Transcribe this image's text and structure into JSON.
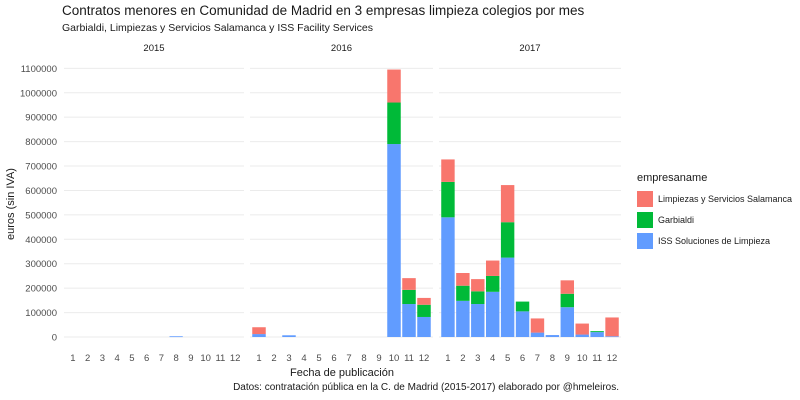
{
  "title": "Contratos menores en Comunidad de Madrid en 3 empresas limpieza colegios por mes",
  "subtitle": "Garbialdi, Limpiezas y Servicios Salamanca y ISS Facility Services",
  "caption": "Datos: contratación pública en la C. de Madrid (2015-2017) elaborado por @hmeleiros.",
  "legend": {
    "title": "empresaname",
    "items": [
      {
        "label": "Limpiezas y Servicios Salamanca",
        "color": "#F8766D"
      },
      {
        "label": "Garbialdi",
        "color": "#00BA38"
      },
      {
        "label": "ISS Soluciones de Limpieza",
        "color": "#619CFF"
      }
    ]
  },
  "chart_data": {
    "type": "bar",
    "stacked": true,
    "facets": [
      "2015",
      "2016",
      "2017"
    ],
    "categories": [
      "1",
      "2",
      "3",
      "4",
      "5",
      "6",
      "7",
      "8",
      "9",
      "10",
      "11",
      "12"
    ],
    "xlabel": "Fecha de publicación",
    "ylabel": "euros (sin IVA)",
    "ylim": [
      0,
      1130000
    ],
    "yticks": [
      0,
      100000,
      200000,
      300000,
      400000,
      500000,
      600000,
      700000,
      800000,
      900000,
      1000000,
      1100000
    ],
    "ytick_labels": [
      "0",
      "100000",
      "200000",
      "300000",
      "400000",
      "500000",
      "600000",
      "700000",
      "800000",
      "900000",
      "1000000",
      "1100000"
    ],
    "grid": true,
    "legend_position": "right",
    "series": [
      {
        "name": "ISS Soluciones de Limpieza",
        "color": "#619CFF",
        "values": {
          "2015": [
            0,
            0,
            0,
            0,
            0,
            0,
            0,
            3000,
            0,
            0,
            0,
            0
          ],
          "2016": [
            12000,
            0,
            7000,
            0,
            0,
            0,
            0,
            0,
            0,
            790000,
            135000,
            82000
          ],
          "2017": [
            490000,
            148000,
            135000,
            185000,
            325000,
            105000,
            18000,
            8000,
            122000,
            10000,
            20000,
            3000
          ]
        }
      },
      {
        "name": "Garbialdi",
        "color": "#00BA38",
        "values": {
          "2015": [
            0,
            0,
            0,
            0,
            0,
            0,
            0,
            0,
            0,
            0,
            0,
            0
          ],
          "2016": [
            0,
            0,
            0,
            0,
            0,
            0,
            0,
            0,
            0,
            170000,
            58000,
            50000
          ],
          "2017": [
            145000,
            62000,
            52000,
            65000,
            145000,
            40000,
            0,
            0,
            55000,
            0,
            4000,
            0
          ]
        }
      },
      {
        "name": "Limpiezas y Servicios Salamanca",
        "color": "#F8766D",
        "values": {
          "2015": [
            0,
            0,
            0,
            0,
            0,
            0,
            0,
            0,
            0,
            0,
            0,
            0
          ],
          "2016": [
            28000,
            0,
            0,
            0,
            0,
            0,
            0,
            0,
            0,
            135000,
            48000,
            28000
          ],
          "2017": [
            92000,
            52000,
            50000,
            63000,
            152000,
            0,
            58000,
            0,
            55000,
            45000,
            0,
            77000
          ]
        }
      }
    ]
  }
}
